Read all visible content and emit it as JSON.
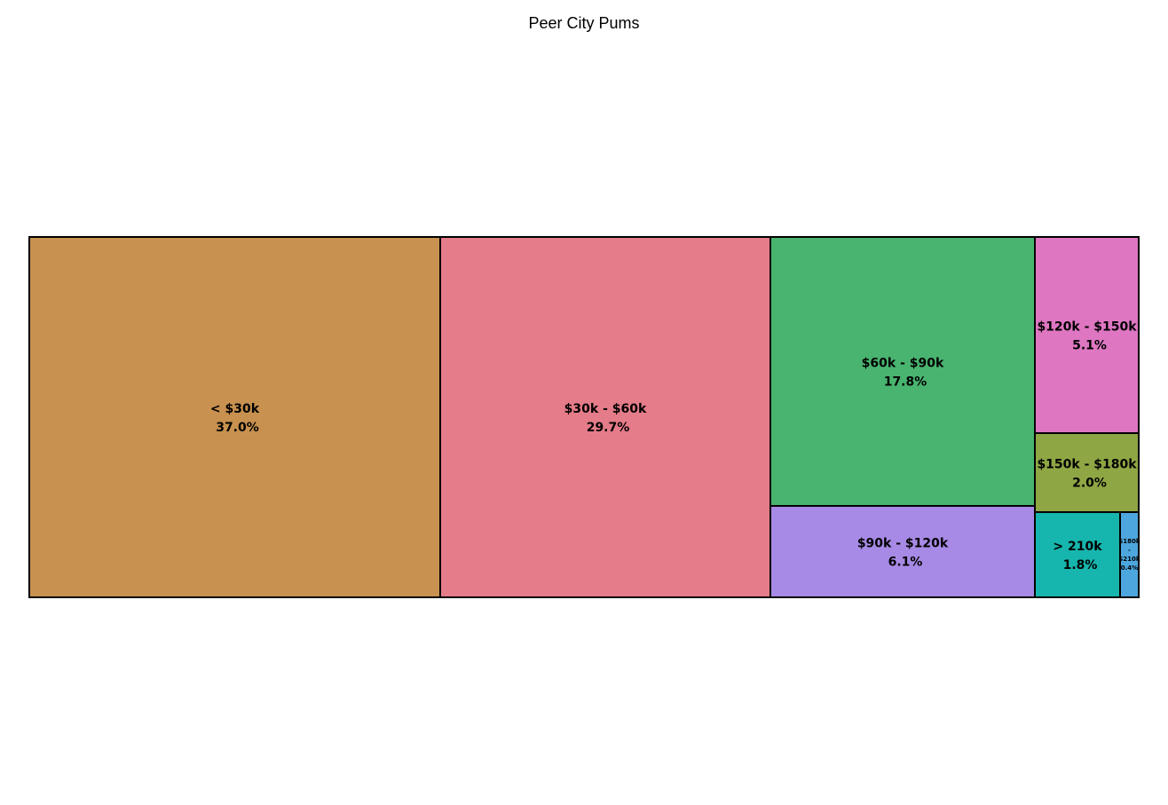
{
  "chart_data": {
    "type": "treemap",
    "title": "Peer City Pums",
    "tiles": [
      {
        "label": "< $30k",
        "value": 37.0,
        "value_label": "37.0%",
        "color": "#C8914F"
      },
      {
        "label": "$30k - $60k",
        "value": 29.7,
        "value_label": "29.7%",
        "color": "#E57C89"
      },
      {
        "label": "$60k - $90k",
        "value": 17.8,
        "value_label": "17.8%",
        "color": "#49B46F"
      },
      {
        "label": "$90k - $120k",
        "value": 6.1,
        "value_label": "6.1%",
        "color": "#A78AE5"
      },
      {
        "label": "$120k - $150k",
        "value": 5.1,
        "value_label": "5.1%",
        "color": "#DE76C2"
      },
      {
        "label": "$150k - $180k",
        "value": 2.0,
        "value_label": "2.0%",
        "color": "#8FA644"
      },
      {
        "label": "> 210k",
        "value": 1.8,
        "value_label": "1.8%",
        "color": "#16B5AD"
      },
      {
        "label": "$180k - $210k",
        "value": 0.4,
        "value_label": "0.4%",
        "color": "#4DA7DE"
      }
    ]
  }
}
